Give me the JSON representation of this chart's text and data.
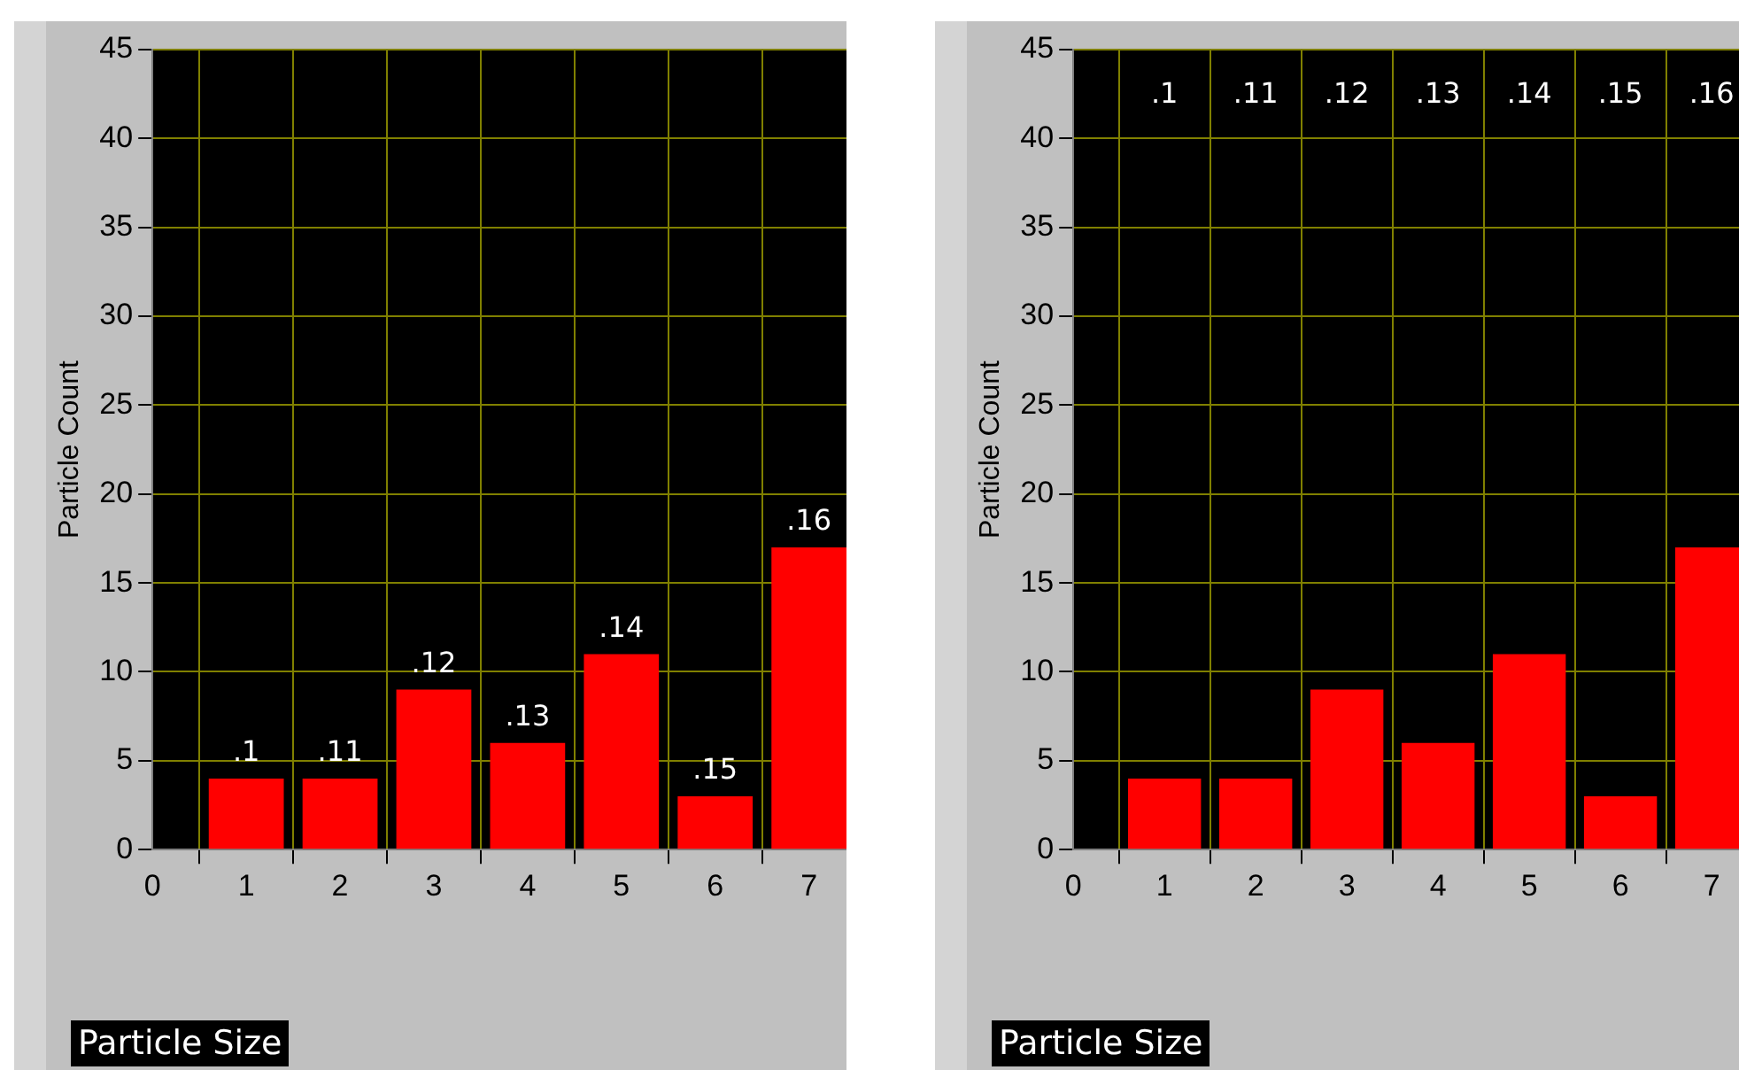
{
  "chart_data": [
    {
      "type": "bar",
      "xlabel": "Particle Size",
      "ylabel": "Particle Count",
      "x": [
        1,
        2,
        3,
        4,
        5,
        6,
        7
      ],
      "values": [
        4,
        4,
        9,
        6,
        11,
        3,
        17
      ],
      "color": "#ff0000",
      "xlim": [
        0,
        7.4
      ],
      "xticks": [
        0,
        1,
        2,
        3,
        4,
        5,
        6,
        7
      ],
      "ylim": [
        0,
        45
      ],
      "yticks": [
        0,
        5,
        10,
        15,
        20,
        25,
        30,
        35,
        40,
        45
      ],
      "grid": true,
      "legend": false,
      "annotations": [
        {
          "text": ".1",
          "x": 1,
          "y": 4
        },
        {
          "text": ".11",
          "x": 2,
          "y": 4
        },
        {
          "text": ".12",
          "x": 3,
          "y": 9
        },
        {
          "text": ".13",
          "x": 4,
          "y": 6
        },
        {
          "text": ".14",
          "x": 5,
          "y": 11
        },
        {
          "text": ".15",
          "x": 6,
          "y": 3
        },
        {
          "text": ".16",
          "x": 7,
          "y": 17
        }
      ]
    },
    {
      "type": "bar",
      "xlabel": "Particle Size",
      "ylabel": "Particle Count",
      "x": [
        1,
        2,
        3,
        4,
        5,
        6,
        7
      ],
      "values": [
        4,
        4,
        9,
        6,
        11,
        3,
        17
      ],
      "color": "#ff0000",
      "xlim": [
        0,
        7.3
      ],
      "xticks": [
        0,
        1,
        2,
        3,
        4,
        5,
        6,
        7
      ],
      "ylim": [
        0,
        45
      ],
      "yticks": [
        0,
        5,
        10,
        15,
        20,
        25,
        30,
        35,
        40,
        45
      ],
      "grid": true,
      "legend": false,
      "annotations": [
        ".1",
        ".11",
        ".12",
        ".13",
        ".14",
        ".15",
        ".16"
      ]
    }
  ]
}
